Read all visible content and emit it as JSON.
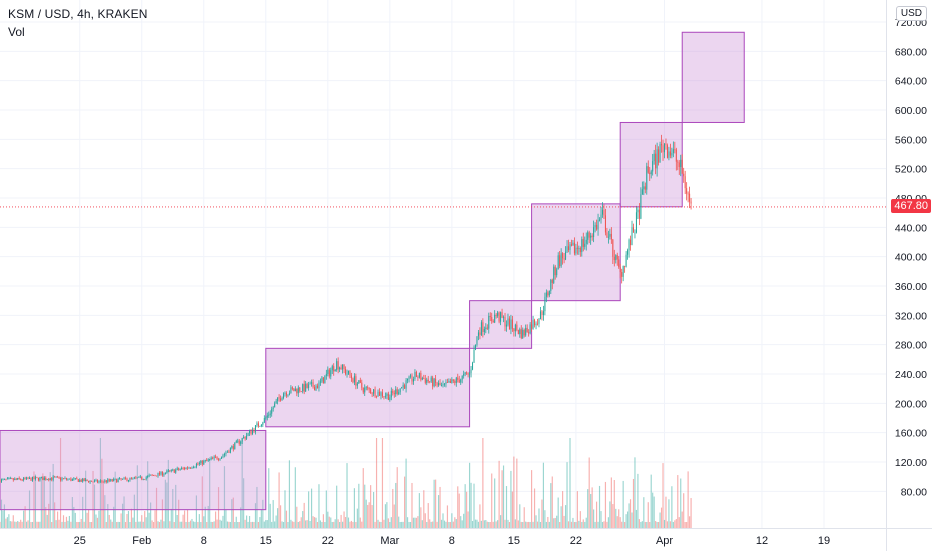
{
  "legend": {
    "title": "KSM / USD, 4h, KRAKEN",
    "volume_label": "Vol"
  },
  "currency_button": "USD",
  "last_price_label": "467.80",
  "colors": {
    "up": "#26a69a",
    "down": "#ef5350",
    "box_fill": "rgba(206,147,216,0.38)",
    "box_stroke": "#ab47bc",
    "grid": "#f0f3fa",
    "price_line": "#f23645"
  },
  "chart_data": {
    "type": "candlestick",
    "title": "KSM / USD, 4h, KRAKEN",
    "price_axis_ticks": [
      80,
      120,
      160,
      200,
      240,
      280,
      320,
      360,
      400,
      440,
      480,
      520,
      560,
      600,
      640,
      680,
      720
    ],
    "price_axis_labels": [
      "80.00",
      "120.00",
      "160.00",
      "200.00",
      "240.00",
      "280.00",
      "320.00",
      "360.00",
      "400.00",
      "440.00",
      "480.00",
      "520.00",
      "560.00",
      "600.00",
      "640.00",
      "680.00",
      "720.00"
    ],
    "ylim": [
      30,
      750
    ],
    "time_axis_labels": [
      "25",
      "Feb",
      "8",
      "15",
      "22",
      "Mar",
      "8",
      "15",
      "22",
      "Apr",
      "12",
      "19"
    ],
    "time_axis_dates": [
      "2021-01-25",
      "2021-02-01",
      "2021-02-08",
      "2021-02-15",
      "2021-02-22",
      "2021-03-01",
      "2021-03-08",
      "2021-03-15",
      "2021-03-22",
      "2021-04-01",
      "2021-04-12",
      "2021-04-19"
    ],
    "xlim": [
      "2021-01-16",
      "2021-04-26"
    ],
    "last_price": 467.8,
    "price_path": [
      {
        "date": "2021-01-16",
        "price": 95
      },
      {
        "date": "2021-01-22",
        "price": 98
      },
      {
        "date": "2021-01-27",
        "price": 93
      },
      {
        "date": "2021-02-01",
        "price": 98
      },
      {
        "date": "2021-02-06",
        "price": 112
      },
      {
        "date": "2021-02-10",
        "price": 128
      },
      {
        "date": "2021-02-13",
        "price": 158
      },
      {
        "date": "2021-02-15",
        "price": 180
      },
      {
        "date": "2021-02-17",
        "price": 215
      },
      {
        "date": "2021-02-21",
        "price": 225
      },
      {
        "date": "2021-02-23",
        "price": 255
      },
      {
        "date": "2021-02-26",
        "price": 220
      },
      {
        "date": "2021-03-01",
        "price": 210
      },
      {
        "date": "2021-03-04",
        "price": 238
      },
      {
        "date": "2021-03-07",
        "price": 222
      },
      {
        "date": "2021-03-10",
        "price": 240
      },
      {
        "date": "2021-03-11",
        "price": 300
      },
      {
        "date": "2021-03-13",
        "price": 320
      },
      {
        "date": "2021-03-16",
        "price": 295
      },
      {
        "date": "2021-03-18",
        "price": 320
      },
      {
        "date": "2021-03-20",
        "price": 395
      },
      {
        "date": "2021-03-23",
        "price": 420
      },
      {
        "date": "2021-03-25",
        "price": 455
      },
      {
        "date": "2021-03-27",
        "price": 375
      },
      {
        "date": "2021-03-29",
        "price": 455
      },
      {
        "date": "2021-03-30",
        "price": 510
      },
      {
        "date": "2021-04-01",
        "price": 555
      },
      {
        "date": "2021-04-02",
        "price": 540
      },
      {
        "date": "2021-04-03",
        "price": 515
      },
      {
        "date": "2021-04-04",
        "price": 467.8
      }
    ],
    "boxes": [
      {
        "start": "2021-01-16",
        "end": "2021-02-15",
        "low": 55,
        "high": 163
      },
      {
        "start": "2021-02-15",
        "end": "2021-03-10",
        "low": 168,
        "high": 275
      },
      {
        "start": "2021-03-10",
        "end": "2021-03-17",
        "low": 275,
        "high": 340
      },
      {
        "start": "2021-03-17",
        "end": "2021-03-27",
        "low": 340,
        "high": 472
      },
      {
        "start": "2021-03-27",
        "end": "2021-04-03",
        "low": 468,
        "high": 583
      },
      {
        "start": "2021-04-03",
        "end": "2021-04-10",
        "low": 583,
        "high": 706
      }
    ],
    "grid": true,
    "volume_shown": true
  }
}
